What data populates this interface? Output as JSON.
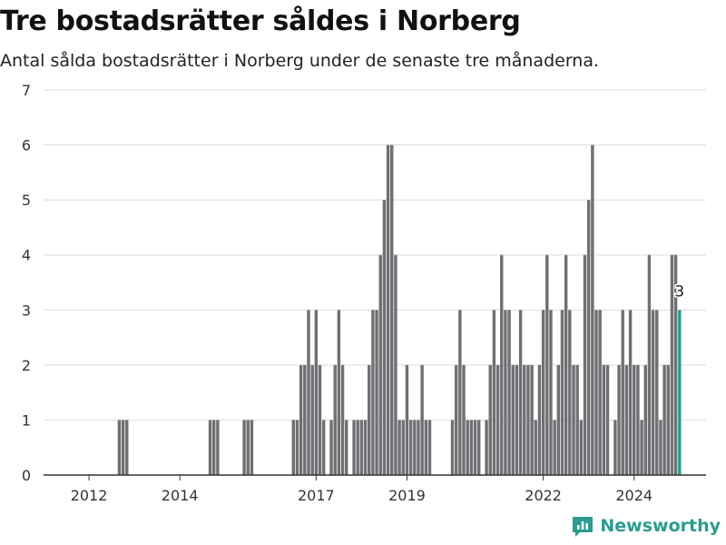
{
  "header": {
    "title": "Tre bostadsrätter såldes i Norberg",
    "subtitle": "Antal sålda bostadsrätter i Norberg under de senaste tre månaderna."
  },
  "brand": {
    "name": "Newsworthy"
  },
  "colors": {
    "bar": "#707074",
    "highlight": "#2a9d8f",
    "grid": "#dddddd"
  },
  "chart_data": {
    "type": "bar",
    "x_start": "2011-01",
    "x_end": "2025-08",
    "y_ticks": [
      "0",
      "1",
      "2",
      "3",
      "4",
      "5",
      "6",
      "7"
    ],
    "ylim": [
      0,
      7
    ],
    "x_ticks": [
      {
        "label": "2012",
        "date": "2012-01"
      },
      {
        "label": "2014",
        "date": "2014-01"
      },
      {
        "label": "2017",
        "date": "2017-01"
      },
      {
        "label": "2019",
        "date": "2019-01"
      },
      {
        "label": "2022",
        "date": "2022-01"
      },
      {
        "label": "2024",
        "date": "2024-01"
      }
    ],
    "series": [
      {
        "values": [
          {
            "x": "2012-09",
            "y": 1
          },
          {
            "x": "2012-10",
            "y": 1
          },
          {
            "x": "2012-11",
            "y": 1
          },
          {
            "x": "2014-09",
            "y": 1
          },
          {
            "x": "2014-10",
            "y": 1
          },
          {
            "x": "2014-11",
            "y": 1
          },
          {
            "x": "2015-06",
            "y": 1
          },
          {
            "x": "2015-07",
            "y": 1
          },
          {
            "x": "2015-08",
            "y": 1
          },
          {
            "x": "2016-07",
            "y": 1
          },
          {
            "x": "2016-08",
            "y": 1
          },
          {
            "x": "2016-09",
            "y": 2
          },
          {
            "x": "2016-10",
            "y": 2
          },
          {
            "x": "2016-11",
            "y": 3
          },
          {
            "x": "2016-12",
            "y": 2
          },
          {
            "x": "2017-01",
            "y": 3
          },
          {
            "x": "2017-02",
            "y": 2
          },
          {
            "x": "2017-03",
            "y": 1
          },
          {
            "x": "2017-05",
            "y": 1
          },
          {
            "x": "2017-06",
            "y": 2
          },
          {
            "x": "2017-07",
            "y": 3
          },
          {
            "x": "2017-08",
            "y": 2
          },
          {
            "x": "2017-09",
            "y": 1
          },
          {
            "x": "2017-11",
            "y": 1
          },
          {
            "x": "2017-12",
            "y": 1
          },
          {
            "x": "2018-01",
            "y": 1
          },
          {
            "x": "2018-02",
            "y": 1
          },
          {
            "x": "2018-03",
            "y": 2
          },
          {
            "x": "2018-04",
            "y": 3
          },
          {
            "x": "2018-05",
            "y": 3
          },
          {
            "x": "2018-06",
            "y": 4
          },
          {
            "x": "2018-07",
            "y": 5
          },
          {
            "x": "2018-08",
            "y": 6
          },
          {
            "x": "2018-09",
            "y": 6
          },
          {
            "x": "2018-10",
            "y": 4
          },
          {
            "x": "2018-11",
            "y": 1
          },
          {
            "x": "2018-12",
            "y": 1
          },
          {
            "x": "2019-01",
            "y": 2
          },
          {
            "x": "2019-02",
            "y": 1
          },
          {
            "x": "2019-03",
            "y": 1
          },
          {
            "x": "2019-04",
            "y": 1
          },
          {
            "x": "2019-05",
            "y": 2
          },
          {
            "x": "2019-06",
            "y": 1
          },
          {
            "x": "2019-07",
            "y": 1
          },
          {
            "x": "2020-01",
            "y": 1
          },
          {
            "x": "2020-02",
            "y": 2
          },
          {
            "x": "2020-03",
            "y": 3
          },
          {
            "x": "2020-04",
            "y": 2
          },
          {
            "x": "2020-05",
            "y": 1
          },
          {
            "x": "2020-06",
            "y": 1
          },
          {
            "x": "2020-07",
            "y": 1
          },
          {
            "x": "2020-08",
            "y": 1
          },
          {
            "x": "2020-10",
            "y": 1
          },
          {
            "x": "2020-11",
            "y": 2
          },
          {
            "x": "2020-12",
            "y": 3
          },
          {
            "x": "2021-01",
            "y": 2
          },
          {
            "x": "2021-02",
            "y": 4
          },
          {
            "x": "2021-03",
            "y": 3
          },
          {
            "x": "2021-04",
            "y": 3
          },
          {
            "x": "2021-05",
            "y": 2
          },
          {
            "x": "2021-06",
            "y": 2
          },
          {
            "x": "2021-07",
            "y": 3
          },
          {
            "x": "2021-08",
            "y": 2
          },
          {
            "x": "2021-09",
            "y": 2
          },
          {
            "x": "2021-10",
            "y": 2
          },
          {
            "x": "2021-11",
            "y": 1
          },
          {
            "x": "2021-12",
            "y": 2
          },
          {
            "x": "2022-01",
            "y": 3
          },
          {
            "x": "2022-02",
            "y": 4
          },
          {
            "x": "2022-03",
            "y": 3
          },
          {
            "x": "2022-04",
            "y": 1
          },
          {
            "x": "2022-05",
            "y": 2
          },
          {
            "x": "2022-06",
            "y": 3
          },
          {
            "x": "2022-07",
            "y": 4
          },
          {
            "x": "2022-08",
            "y": 3
          },
          {
            "x": "2022-09",
            "y": 2
          },
          {
            "x": "2022-10",
            "y": 2
          },
          {
            "x": "2022-11",
            "y": 1
          },
          {
            "x": "2022-12",
            "y": 4
          },
          {
            "x": "2023-01",
            "y": 5
          },
          {
            "x": "2023-02",
            "y": 6
          },
          {
            "x": "2023-03",
            "y": 3
          },
          {
            "x": "2023-04",
            "y": 3
          },
          {
            "x": "2023-05",
            "y": 2
          },
          {
            "x": "2023-06",
            "y": 2
          },
          {
            "x": "2023-08",
            "y": 1
          },
          {
            "x": "2023-09",
            "y": 2
          },
          {
            "x": "2023-10",
            "y": 3
          },
          {
            "x": "2023-11",
            "y": 2
          },
          {
            "x": "2023-12",
            "y": 3
          },
          {
            "x": "2024-01",
            "y": 2
          },
          {
            "x": "2024-02",
            "y": 2
          },
          {
            "x": "2024-03",
            "y": 1
          },
          {
            "x": "2024-04",
            "y": 2
          },
          {
            "x": "2024-05",
            "y": 4
          },
          {
            "x": "2024-06",
            "y": 3
          },
          {
            "x": "2024-07",
            "y": 3
          },
          {
            "x": "2024-08",
            "y": 1
          },
          {
            "x": "2024-09",
            "y": 2
          },
          {
            "x": "2024-10",
            "y": 2
          },
          {
            "x": "2024-11",
            "y": 4
          },
          {
            "x": "2024-12",
            "y": 4
          },
          {
            "x": "2025-01",
            "y": 3
          }
        ]
      }
    ],
    "highlight": {
      "x": "2025-01",
      "y": 3,
      "label": "3"
    }
  }
}
